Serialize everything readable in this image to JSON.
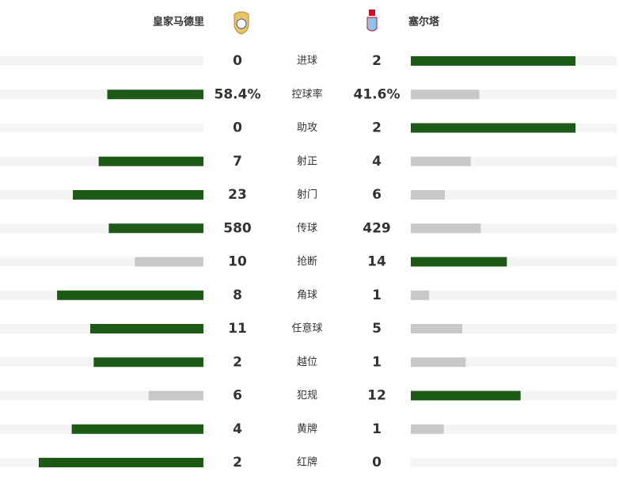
{
  "chart_data": {
    "type": "comparison",
    "categories": [
      "进球",
      "控球率",
      "助攻",
      "射正",
      "射门",
      "传球",
      "抢断",
      "角球",
      "任意球",
      "越位",
      "犯规",
      "黄牌",
      "红牌"
    ],
    "series": [
      {
        "name": "皇家马德里",
        "values": [
          0,
          58.4,
          0,
          7,
          23,
          580,
          10,
          8,
          11,
          2,
          6,
          4,
          2
        ],
        "value_labels": [
          "0",
          "58.4%",
          "0",
          "7",
          "23",
          "580",
          "10",
          "8",
          "11",
          "2",
          "6",
          "4",
          "2"
        ]
      },
      {
        "name": "塞尔塔",
        "values": [
          2,
          41.6,
          2,
          4,
          6,
          429,
          14,
          1,
          5,
          1,
          12,
          1,
          0
        ],
        "value_labels": [
          "2",
          "41.6%",
          "2",
          "4",
          "6",
          "429",
          "14",
          "1",
          "5",
          "1",
          "12",
          "1",
          "0"
        ]
      }
    ],
    "colors": {
      "higher": "#1e5a17",
      "lower": "#c8c8c8",
      "track": "#f4f4f4"
    }
  }
}
